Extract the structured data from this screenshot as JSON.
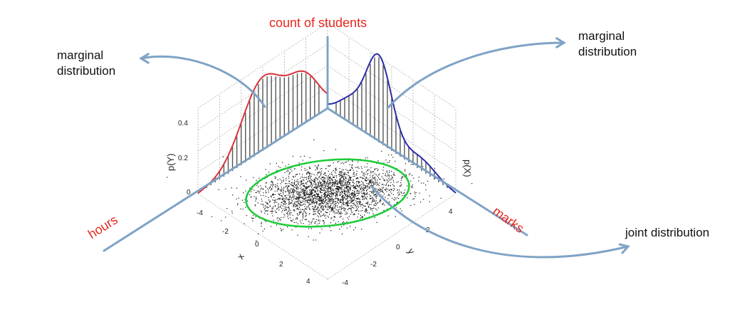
{
  "annotations": {
    "count_label": "count of students",
    "marginal_left_line1": "marginal",
    "marginal_left_line2": "distribution",
    "marginal_right_line1": "marginal",
    "marginal_right_line2": "distribution",
    "joint_label": "joint distribution",
    "hours_label": "hours",
    "marks_label": "marks"
  },
  "plot": {
    "py_label": "p(Y)",
    "px_label": "p(X)",
    "x_label": "x",
    "y_label": "y",
    "z_ticks": [
      "0",
      "0.2",
      "0.4"
    ],
    "x_ticks": [
      "-4",
      "-2",
      "0",
      "2",
      "4"
    ],
    "y_ticks": [
      "4",
      "2",
      "0",
      "-2",
      "-4"
    ]
  },
  "colors": {
    "annotation_red": "#e8271c",
    "arrow_blue": "#7fa3c6",
    "marginal_left_curve": "#d9323a",
    "marginal_right_curve": "#2c2ca8",
    "ellipse_green": "#1fcc3a",
    "scatter_black": "#111111",
    "grid_gray": "#b0b0b0"
  }
}
